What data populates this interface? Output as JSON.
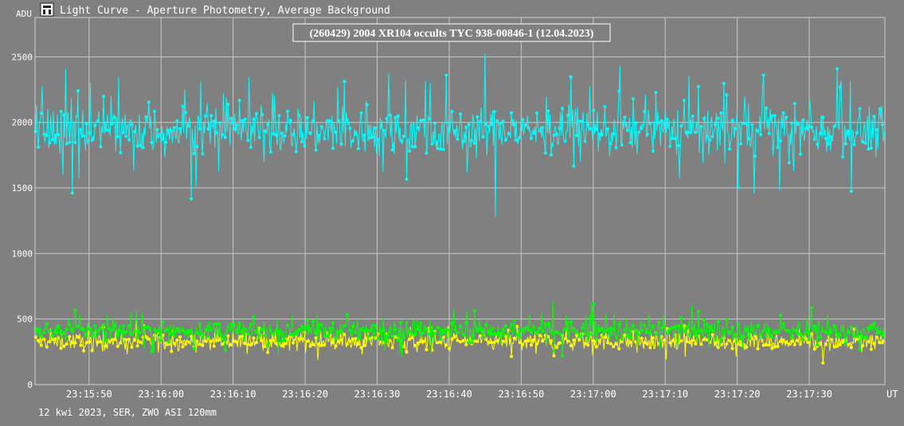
{
  "window": {
    "title": "Light Curve - Aperture Photometry, Average Background",
    "icon": "light-curve-app-icon"
  },
  "footer": {
    "info": "12 kwi 2023, SER, ZWO ASI 120mm"
  },
  "chart_data": {
    "type": "line",
    "title": "(260429) 2004 XR104 occults TYC 938-00846-1 (12.04.2023)",
    "ylabel": "ADU",
    "xlabel": "UT",
    "ylim": [
      0,
      2800
    ],
    "yticks": [
      0,
      500,
      1000,
      1500,
      2000,
      2500
    ],
    "xticks": [
      "23:15:50",
      "23:16:00",
      "23:16:10",
      "23:16:20",
      "23:16:30",
      "23:16:40",
      "23:16:50",
      "23:17:00",
      "23:17:10",
      "23:17:20",
      "23:17:30"
    ],
    "xrange": [
      "23:15:42.5",
      "23:17:40.5"
    ],
    "grid": true,
    "series": [
      {
        "color": "#00FFFF",
        "mean": 1940,
        "spread": 150,
        "spikes": 260,
        "marker": "dot"
      },
      {
        "color": "#00FF00",
        "mean": 410,
        "spread": 60,
        "spikes": 90,
        "marker": "dot"
      },
      {
        "color": "#FFFF00",
        "mean": 330,
        "spread": 55,
        "spikes": 60,
        "marker": "dot"
      }
    ]
  }
}
